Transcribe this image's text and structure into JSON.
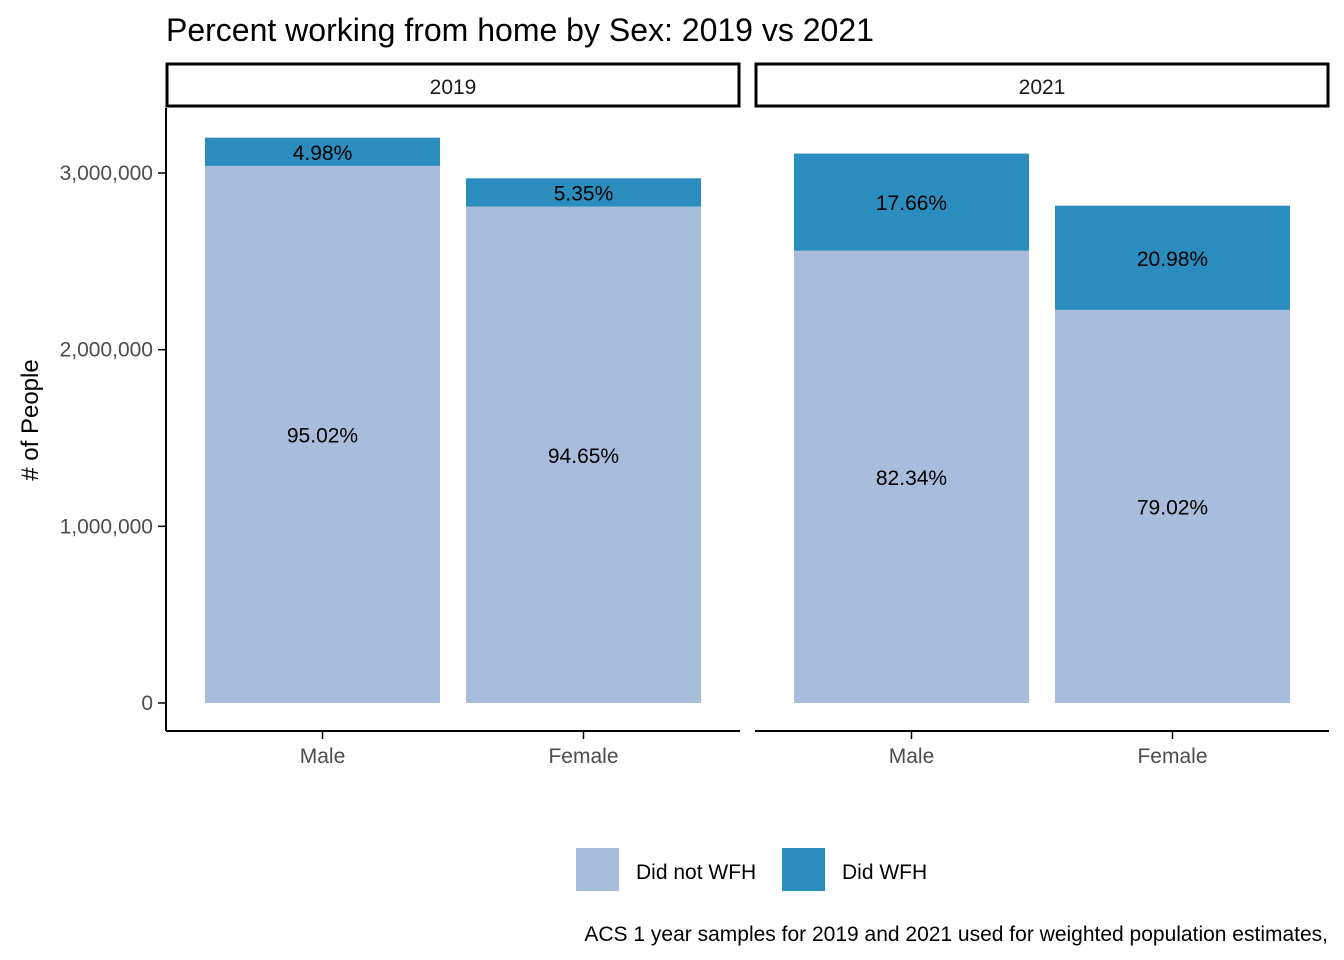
{
  "title": "Percent working from home by Sex: 2019 vs 2021",
  "ylabel": "# of People",
  "caption": "ACS 1 year samples for 2019 and 2021 used for weighted population estimates,",
  "colors": {
    "did_not_wfh": "#a8bddc",
    "did_wfh": "#2b8cbe",
    "axis": "#000000",
    "tick_text": "#4d4d4d"
  },
  "chart_data": {
    "type": "bar",
    "stacked": true,
    "grid": false,
    "legend_position": "bottom",
    "ylim": [
      0,
      3350000
    ],
    "yticks": [
      0,
      1000000,
      2000000,
      3000000
    ],
    "ytick_labels": [
      "0",
      "1,000,000",
      "2,000,000",
      "3,000,000"
    ],
    "categories": [
      "Male",
      "Female"
    ],
    "legend": [
      {
        "key": "did_not_wfh",
        "label": "Did not WFH"
      },
      {
        "key": "did_wfh",
        "label": "Did WFH"
      }
    ],
    "panels": [
      {
        "label": "2019",
        "series": [
          {
            "name": "Did not WFH",
            "values": [
              3040000,
              2810000
            ],
            "labels": [
              "95.02%",
              "94.65%"
            ]
          },
          {
            "name": "Did WFH",
            "values": [
              160000,
              160000
            ],
            "labels": [
              "4.98%",
              "5.35%"
            ]
          }
        ]
      },
      {
        "label": "2021",
        "series": [
          {
            "name": "Did not WFH",
            "values": [
              2560000,
              2225000
            ],
            "labels": [
              "82.34%",
              "79.02%"
            ]
          },
          {
            "name": "Did WFH",
            "values": [
              550000,
              590000
            ],
            "labels": [
              "17.66%",
              "20.98%"
            ]
          }
        ]
      }
    ]
  }
}
